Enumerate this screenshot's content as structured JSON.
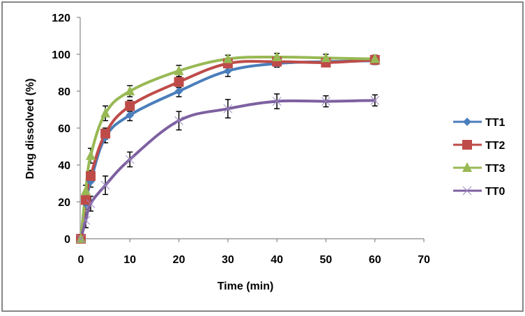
{
  "chart_data": {
    "type": "line",
    "title": "",
    "xlabel": "Time (min)",
    "ylabel": "Drug dissolved (%)",
    "xlim": [
      0,
      70
    ],
    "ylim": [
      0,
      120
    ],
    "xticks": [
      0,
      10,
      20,
      30,
      40,
      50,
      60,
      70
    ],
    "yticks": [
      0,
      20,
      40,
      60,
      80,
      100,
      120
    ],
    "grid": false,
    "legend_position": "right",
    "x": [
      0,
      1,
      2,
      5,
      10,
      20,
      30,
      40,
      50,
      60
    ],
    "series": [
      {
        "name": "TT1",
        "color": "#4a7ebb",
        "marker": "diamond",
        "values": [
          0,
          19,
          31,
          55,
          67,
          80,
          91,
          95,
          96,
          96.5
        ],
        "errors": [
          0,
          3,
          3,
          3,
          3,
          3,
          3,
          2,
          2,
          2
        ]
      },
      {
        "name": "TT2",
        "color": "#be4b48",
        "marker": "square",
        "values": [
          0,
          21,
          34,
          57,
          72,
          85,
          95,
          96,
          95.5,
          97
        ],
        "errors": [
          0,
          3,
          3,
          3,
          3,
          3,
          2,
          2,
          2,
          2
        ]
      },
      {
        "name": "TT3",
        "color": "#98b954",
        "marker": "triangle",
        "values": [
          0,
          26,
          45,
          68,
          80,
          91,
          97.5,
          98.5,
          98,
          97.5
        ],
        "errors": [
          0,
          3,
          4,
          4,
          3,
          3,
          2,
          2,
          2,
          2
        ]
      },
      {
        "name": "TT0",
        "color": "#7d60a0",
        "marker": "x",
        "values": [
          0,
          10,
          19,
          29,
          43,
          64,
          70.5,
          74.5,
          74.5,
          75
        ],
        "errors": [
          0,
          4,
          4,
          5,
          4,
          5,
          5,
          4,
          3,
          3
        ]
      }
    ]
  }
}
